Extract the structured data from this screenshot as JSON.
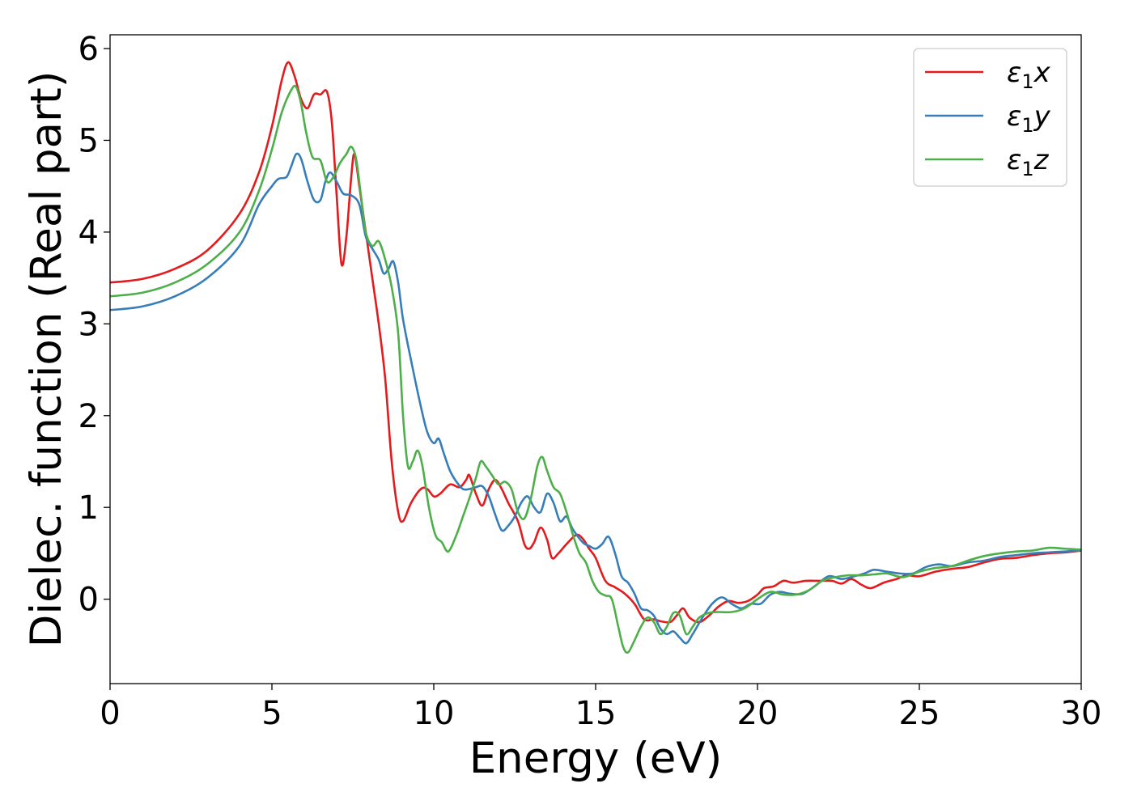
{
  "chart_data": {
    "type": "line",
    "xlabel": "Energy (eV)",
    "ylabel": "Dielec. function (Real part)",
    "xlim": [
      0,
      30
    ],
    "ylim": [
      -0.92,
      6.15
    ],
    "x_ticks": [
      0,
      5,
      10,
      15,
      20,
      25,
      30
    ],
    "y_ticks": [
      0,
      1,
      2,
      3,
      4,
      5,
      6
    ],
    "grid": false,
    "legend_position": "top-right",
    "series": [
      {
        "name": "ε1x",
        "label": {
          "base": "ε",
          "sub": "1",
          "var": "x"
        },
        "color": "#e41a1c",
        "points": [
          [
            0,
            3.45
          ],
          [
            1,
            3.49
          ],
          [
            2,
            3.6
          ],
          [
            3,
            3.8
          ],
          [
            4,
            4.2
          ],
          [
            4.6,
            4.65
          ],
          [
            5,
            5.15
          ],
          [
            5.3,
            5.65
          ],
          [
            5.5,
            5.85
          ],
          [
            5.7,
            5.7
          ],
          [
            5.9,
            5.45
          ],
          [
            6.1,
            5.35
          ],
          [
            6.3,
            5.5
          ],
          [
            6.5,
            5.5
          ],
          [
            6.7,
            5.53
          ],
          [
            6.85,
            5.2
          ],
          [
            7.0,
            4.4
          ],
          [
            7.15,
            3.65
          ],
          [
            7.3,
            3.95
          ],
          [
            7.45,
            4.6
          ],
          [
            7.55,
            4.85
          ],
          [
            7.7,
            4.5
          ],
          [
            7.9,
            4.0
          ],
          [
            8.1,
            3.5
          ],
          [
            8.3,
            3.0
          ],
          [
            8.5,
            2.4
          ],
          [
            8.7,
            1.5
          ],
          [
            8.9,
            0.95
          ],
          [
            9.05,
            0.85
          ],
          [
            9.3,
            1.05
          ],
          [
            9.6,
            1.2
          ],
          [
            9.8,
            1.2
          ],
          [
            10.0,
            1.12
          ],
          [
            10.2,
            1.15
          ],
          [
            10.5,
            1.25
          ],
          [
            10.8,
            1.22
          ],
          [
            11.0,
            1.3
          ],
          [
            11.1,
            1.35
          ],
          [
            11.3,
            1.15
          ],
          [
            11.5,
            1.02
          ],
          [
            11.7,
            1.2
          ],
          [
            11.9,
            1.3
          ],
          [
            12.1,
            1.2
          ],
          [
            12.3,
            1.05
          ],
          [
            12.6,
            0.85
          ],
          [
            12.8,
            0.6
          ],
          [
            12.95,
            0.55
          ],
          [
            13.1,
            0.62
          ],
          [
            13.3,
            0.78
          ],
          [
            13.5,
            0.65
          ],
          [
            13.65,
            0.45
          ],
          [
            13.85,
            0.5
          ],
          [
            14.1,
            0.6
          ],
          [
            14.4,
            0.7
          ],
          [
            14.6,
            0.66
          ],
          [
            14.8,
            0.55
          ],
          [
            15.0,
            0.45
          ],
          [
            15.3,
            0.2
          ],
          [
            15.6,
            0.13
          ],
          [
            15.9,
            0.06
          ],
          [
            16.2,
            -0.05
          ],
          [
            16.5,
            -0.22
          ],
          [
            16.8,
            -0.22
          ],
          [
            17.0,
            -0.24
          ],
          [
            17.3,
            -0.25
          ],
          [
            17.5,
            -0.18
          ],
          [
            17.7,
            -0.1
          ],
          [
            17.9,
            -0.2
          ],
          [
            18.2,
            -0.25
          ],
          [
            18.5,
            -0.18
          ],
          [
            18.8,
            -0.08
          ],
          [
            19.1,
            -0.02
          ],
          [
            19.4,
            -0.04
          ],
          [
            19.7,
            -0.02
          ],
          [
            20.0,
            0.05
          ],
          [
            20.2,
            0.12
          ],
          [
            20.5,
            0.14
          ],
          [
            20.8,
            0.2
          ],
          [
            21.1,
            0.18
          ],
          [
            21.5,
            0.2
          ],
          [
            21.9,
            0.2
          ],
          [
            22.3,
            0.2
          ],
          [
            22.6,
            0.17
          ],
          [
            22.9,
            0.22
          ],
          [
            23.2,
            0.16
          ],
          [
            23.5,
            0.12
          ],
          [
            23.9,
            0.18
          ],
          [
            24.3,
            0.22
          ],
          [
            24.6,
            0.26
          ],
          [
            25.0,
            0.25
          ],
          [
            25.5,
            0.3
          ],
          [
            26.0,
            0.33
          ],
          [
            26.5,
            0.35
          ],
          [
            27.0,
            0.4
          ],
          [
            27.5,
            0.44
          ],
          [
            28.0,
            0.45
          ],
          [
            28.5,
            0.48
          ],
          [
            29.0,
            0.5
          ],
          [
            29.5,
            0.51
          ],
          [
            30,
            0.53
          ]
        ]
      },
      {
        "name": "ε1y",
        "label": {
          "base": "ε",
          "sub": "1",
          "var": "y"
        },
        "color": "#377eb8",
        "points": [
          [
            0,
            3.15
          ],
          [
            1,
            3.19
          ],
          [
            2,
            3.3
          ],
          [
            3,
            3.5
          ],
          [
            4,
            3.85
          ],
          [
            4.6,
            4.3
          ],
          [
            5,
            4.5
          ],
          [
            5.2,
            4.58
          ],
          [
            5.45,
            4.6
          ],
          [
            5.6,
            4.72
          ],
          [
            5.75,
            4.85
          ],
          [
            5.9,
            4.8
          ],
          [
            6.1,
            4.55
          ],
          [
            6.3,
            4.35
          ],
          [
            6.5,
            4.35
          ],
          [
            6.65,
            4.55
          ],
          [
            6.8,
            4.65
          ],
          [
            7.0,
            4.55
          ],
          [
            7.2,
            4.42
          ],
          [
            7.45,
            4.4
          ],
          [
            7.7,
            4.3
          ],
          [
            7.9,
            3.95
          ],
          [
            8.1,
            3.82
          ],
          [
            8.3,
            3.7
          ],
          [
            8.45,
            3.55
          ],
          [
            8.6,
            3.6
          ],
          [
            8.75,
            3.68
          ],
          [
            8.9,
            3.45
          ],
          [
            9.05,
            3.05
          ],
          [
            9.3,
            2.6
          ],
          [
            9.6,
            2.1
          ],
          [
            9.8,
            1.82
          ],
          [
            10.0,
            1.7
          ],
          [
            10.15,
            1.75
          ],
          [
            10.3,
            1.6
          ],
          [
            10.5,
            1.4
          ],
          [
            10.7,
            1.28
          ],
          [
            10.9,
            1.2
          ],
          [
            11.1,
            1.2
          ],
          [
            11.3,
            1.22
          ],
          [
            11.5,
            1.23
          ],
          [
            11.7,
            1.12
          ],
          [
            11.9,
            0.92
          ],
          [
            12.1,
            0.75
          ],
          [
            12.3,
            0.8
          ],
          [
            12.5,
            0.9
          ],
          [
            12.7,
            1.05
          ],
          [
            12.9,
            1.12
          ],
          [
            13.1,
            1.0
          ],
          [
            13.3,
            0.95
          ],
          [
            13.5,
            1.15
          ],
          [
            13.7,
            1.05
          ],
          [
            13.9,
            0.85
          ],
          [
            14.1,
            0.9
          ],
          [
            14.3,
            0.76
          ],
          [
            14.6,
            0.62
          ],
          [
            14.8,
            0.58
          ],
          [
            15.0,
            0.55
          ],
          [
            15.2,
            0.6
          ],
          [
            15.4,
            0.68
          ],
          [
            15.6,
            0.5
          ],
          [
            15.8,
            0.25
          ],
          [
            16.0,
            0.18
          ],
          [
            16.2,
            0.06
          ],
          [
            16.4,
            -0.1
          ],
          [
            16.6,
            -0.12
          ],
          [
            16.8,
            -0.18
          ],
          [
            17.0,
            -0.32
          ],
          [
            17.2,
            -0.38
          ],
          [
            17.4,
            -0.35
          ],
          [
            17.6,
            -0.42
          ],
          [
            17.8,
            -0.48
          ],
          [
            18.0,
            -0.38
          ],
          [
            18.3,
            -0.2
          ],
          [
            18.6,
            -0.05
          ],
          [
            18.9,
            0.02
          ],
          [
            19.2,
            -0.05
          ],
          [
            19.5,
            -0.1
          ],
          [
            19.8,
            -0.05
          ],
          [
            20.1,
            -0.05
          ],
          [
            20.4,
            0.05
          ],
          [
            20.7,
            0.08
          ],
          [
            21.0,
            0.06
          ],
          [
            21.4,
            0.06
          ],
          [
            21.8,
            0.15
          ],
          [
            22.2,
            0.25
          ],
          [
            22.6,
            0.22
          ],
          [
            23.0,
            0.25
          ],
          [
            23.3,
            0.28
          ],
          [
            23.6,
            0.32
          ],
          [
            24.0,
            0.3
          ],
          [
            24.4,
            0.28
          ],
          [
            24.8,
            0.28
          ],
          [
            25.2,
            0.35
          ],
          [
            25.6,
            0.38
          ],
          [
            26.0,
            0.36
          ],
          [
            26.5,
            0.4
          ],
          [
            27.0,
            0.42
          ],
          [
            27.5,
            0.46
          ],
          [
            28.0,
            0.48
          ],
          [
            28.5,
            0.5
          ],
          [
            29.0,
            0.51
          ],
          [
            29.5,
            0.52
          ],
          [
            30,
            0.53
          ]
        ]
      },
      {
        "name": "ε1z",
        "label": {
          "base": "ε",
          "sub": "1",
          "var": "z"
        },
        "color": "#4daf4a",
        "points": [
          [
            0,
            3.3
          ],
          [
            1,
            3.34
          ],
          [
            2,
            3.45
          ],
          [
            3,
            3.65
          ],
          [
            4,
            4.0
          ],
          [
            4.6,
            4.45
          ],
          [
            5,
            4.9
          ],
          [
            5.3,
            5.3
          ],
          [
            5.6,
            5.55
          ],
          [
            5.75,
            5.58
          ],
          [
            5.9,
            5.4
          ],
          [
            6.05,
            5.1
          ],
          [
            6.25,
            4.82
          ],
          [
            6.5,
            4.78
          ],
          [
            6.7,
            4.55
          ],
          [
            6.9,
            4.6
          ],
          [
            7.1,
            4.75
          ],
          [
            7.3,
            4.85
          ],
          [
            7.45,
            4.93
          ],
          [
            7.6,
            4.8
          ],
          [
            7.75,
            4.4
          ],
          [
            7.9,
            4.0
          ],
          [
            8.1,
            3.85
          ],
          [
            8.3,
            3.9
          ],
          [
            8.5,
            3.7
          ],
          [
            8.7,
            3.4
          ],
          [
            8.9,
            2.9
          ],
          [
            9.05,
            2.0
          ],
          [
            9.2,
            1.45
          ],
          [
            9.35,
            1.5
          ],
          [
            9.5,
            1.62
          ],
          [
            9.65,
            1.45
          ],
          [
            9.85,
            1.0
          ],
          [
            10.05,
            0.7
          ],
          [
            10.25,
            0.62
          ],
          [
            10.45,
            0.52
          ],
          [
            10.7,
            0.7
          ],
          [
            10.9,
            0.9
          ],
          [
            11.1,
            1.1
          ],
          [
            11.3,
            1.32
          ],
          [
            11.45,
            1.5
          ],
          [
            11.6,
            1.45
          ],
          [
            11.8,
            1.35
          ],
          [
            12.0,
            1.25
          ],
          [
            12.2,
            1.28
          ],
          [
            12.4,
            1.2
          ],
          [
            12.6,
            0.95
          ],
          [
            12.8,
            0.88
          ],
          [
            13.0,
            1.1
          ],
          [
            13.2,
            1.45
          ],
          [
            13.35,
            1.55
          ],
          [
            13.5,
            1.4
          ],
          [
            13.7,
            1.22
          ],
          [
            13.9,
            1.15
          ],
          [
            14.1,
            0.95
          ],
          [
            14.3,
            0.7
          ],
          [
            14.5,
            0.5
          ],
          [
            14.7,
            0.4
          ],
          [
            14.9,
            0.2
          ],
          [
            15.1,
            0.08
          ],
          [
            15.3,
            0.04
          ],
          [
            15.5,
            0.0
          ],
          [
            15.7,
            -0.3
          ],
          [
            15.85,
            -0.52
          ],
          [
            16.0,
            -0.58
          ],
          [
            16.2,
            -0.45
          ],
          [
            16.4,
            -0.3
          ],
          [
            16.6,
            -0.2
          ],
          [
            16.8,
            -0.25
          ],
          [
            17.0,
            -0.38
          ],
          [
            17.2,
            -0.3
          ],
          [
            17.4,
            -0.15
          ],
          [
            17.6,
            -0.18
          ],
          [
            17.8,
            -0.38
          ],
          [
            18.0,
            -0.3
          ],
          [
            18.2,
            -0.2
          ],
          [
            18.5,
            -0.15
          ],
          [
            18.8,
            -0.14
          ],
          [
            19.2,
            -0.14
          ],
          [
            19.6,
            -0.1
          ],
          [
            20.0,
            0.0
          ],
          [
            20.4,
            0.08
          ],
          [
            20.8,
            0.05
          ],
          [
            21.2,
            0.05
          ],
          [
            21.6,
            0.1
          ],
          [
            22.0,
            0.2
          ],
          [
            22.4,
            0.24
          ],
          [
            22.8,
            0.26
          ],
          [
            23.2,
            0.26
          ],
          [
            23.6,
            0.27
          ],
          [
            24.0,
            0.28
          ],
          [
            24.5,
            0.24
          ],
          [
            25.0,
            0.3
          ],
          [
            25.5,
            0.34
          ],
          [
            26.0,
            0.36
          ],
          [
            26.5,
            0.42
          ],
          [
            27.0,
            0.47
          ],
          [
            27.5,
            0.5
          ],
          [
            28.0,
            0.52
          ],
          [
            28.5,
            0.53
          ],
          [
            29.0,
            0.56
          ],
          [
            29.5,
            0.55
          ],
          [
            30,
            0.54
          ]
        ]
      }
    ]
  }
}
